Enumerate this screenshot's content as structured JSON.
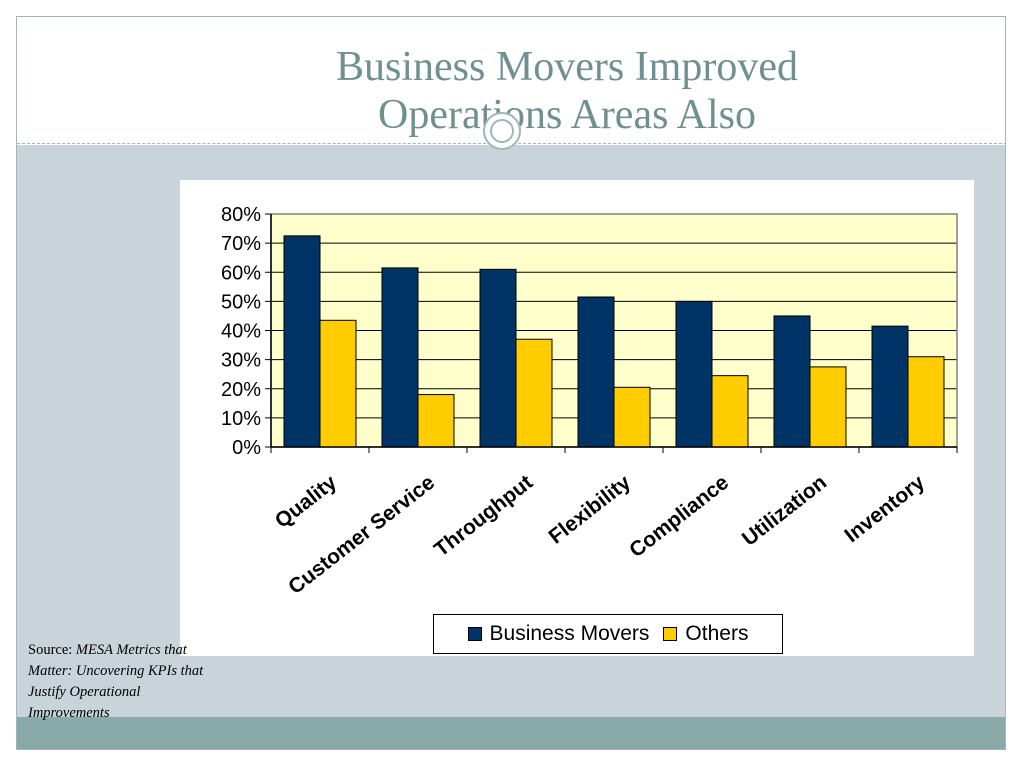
{
  "slide": {
    "title_line1": "Business Movers Improved",
    "title_line2": "Operations Areas Also",
    "source_label": "Source: ",
    "source_text": "MESA Metrics that Matter: Uncovering KPIs that Justify Operational Improvements"
  },
  "colors": {
    "series_business_movers": "#003366",
    "series_others": "#ffcc00",
    "plot_background": "#ffffcc"
  },
  "chart_data": {
    "type": "bar",
    "title": "",
    "xlabel": "",
    "ylabel": "",
    "categories": [
      "Quality",
      "Customer Service",
      "Throughput",
      "Flexibility",
      "Compliance",
      "Utilization",
      "Inventory"
    ],
    "series": [
      {
        "name": "Business Movers",
        "values": [
          72.5,
          61.5,
          61,
          51.5,
          50,
          45,
          41.5
        ]
      },
      {
        "name": "Others",
        "values": [
          43.5,
          18,
          37,
          20.5,
          24.5,
          27.5,
          31
        ]
      }
    ],
    "ylim": [
      0,
      80
    ],
    "yticks": [
      "0%",
      "10%",
      "20%",
      "30%",
      "40%",
      "50%",
      "60%",
      "70%",
      "80%"
    ],
    "grid": true,
    "legend": "bottom"
  }
}
